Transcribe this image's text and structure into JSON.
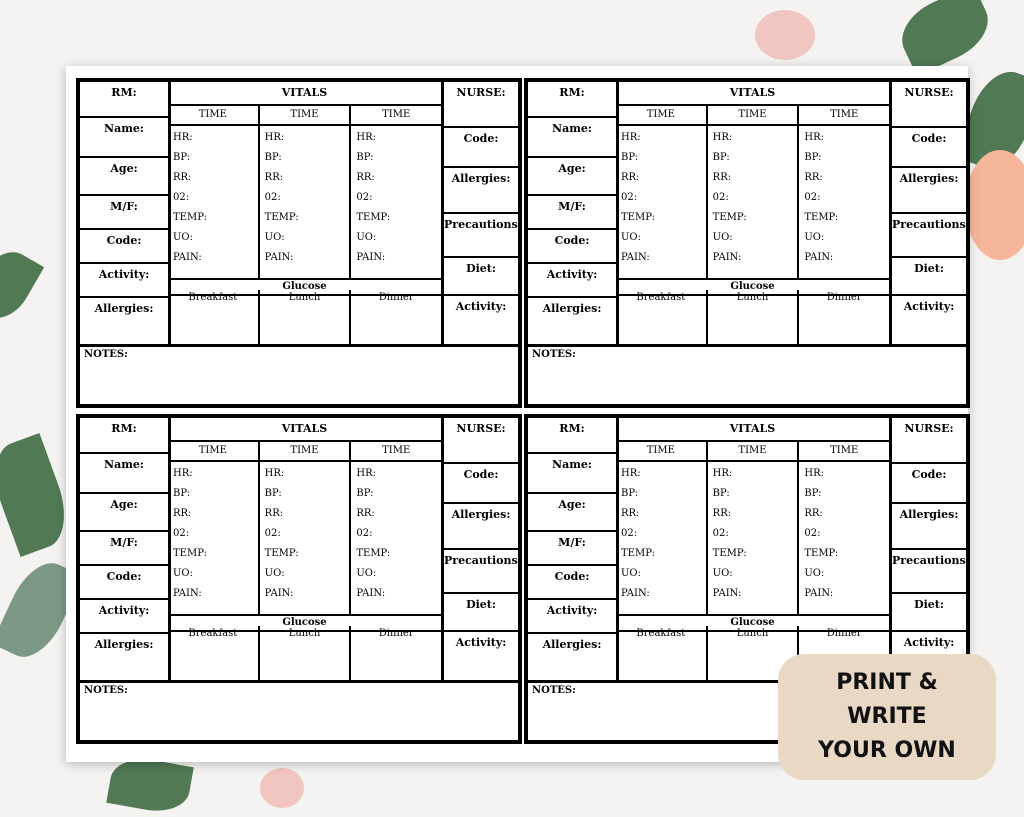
{
  "card": {
    "left_labels": [
      "RM:",
      "Name:",
      "Age:",
      "M/F:",
      "Code:",
      "Activity:",
      "Allergies:"
    ],
    "vitals_title": "VITALS",
    "time_label": "TIME",
    "vital_signs": [
      "HR:",
      "BP:",
      "RR:",
      "02:",
      "TEMP:",
      "UO:",
      "PAIN:"
    ],
    "glucose_title": "Glucose",
    "meals": [
      "Breakfast",
      "Lunch",
      "Dinner"
    ],
    "right_labels": [
      "NURSE:",
      "Code:",
      "Allergies:",
      "Precautions:",
      "Diet:",
      "Activity:"
    ],
    "notes_label": "NOTES:"
  },
  "badge": {
    "line1": "PRINT &",
    "line2": "WRITE",
    "line3": "YOUR OWN"
  }
}
